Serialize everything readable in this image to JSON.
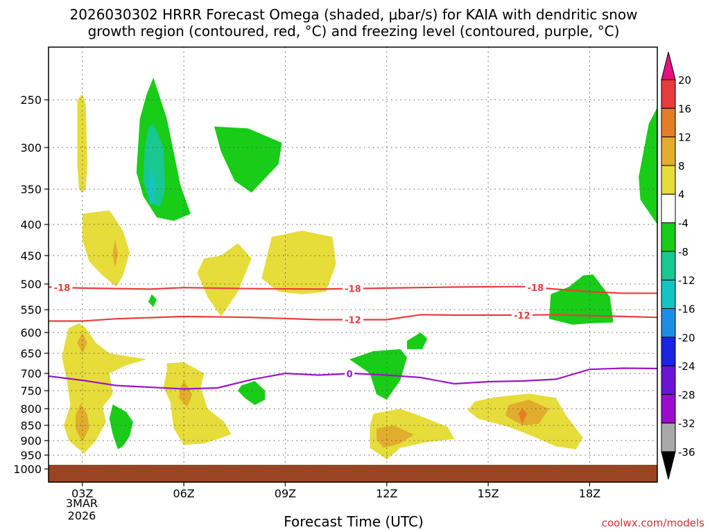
{
  "chart_data": {
    "type": "heatmap",
    "title_line1": "2026030302 HRRR Forecast Omega (shaded, μbar/s) for KAIA with dendritic snow",
    "title_line2": "growth region (contoured, red, °C) and freezing level (contoured, purple, °C)",
    "xlabel": "Forecast Time (UTC)",
    "credit": "coolwx.com/models",
    "x_ticks": [
      "03Z",
      "06Z",
      "09Z",
      "12Z",
      "15Z",
      "18Z"
    ],
    "x_tick_hours": [
      3,
      6,
      9,
      12,
      15,
      18
    ],
    "x_date_line1": "3MAR",
    "x_date_line2": "2026",
    "xlim_hours": [
      2,
      20
    ],
    "y_ticks": [
      250,
      300,
      350,
      400,
      450,
      500,
      550,
      600,
      650,
      700,
      750,
      800,
      850,
      900,
      950,
      1000
    ],
    "ylim_pressure": [
      1000,
      200
    ],
    "grid": true,
    "colorbar": {
      "levels": [
        -36,
        -32,
        -28,
        -24,
        -20,
        -16,
        -12,
        -8,
        -4,
        4,
        8,
        12,
        16,
        20
      ],
      "colors": [
        "#000000",
        "#a9a9a9",
        "#9b0bce",
        "#6a14d6",
        "#1a23e0",
        "#1d8ee8",
        "#14c4c4",
        "#18c890",
        "#18cc18",
        "#ffffff",
        "#e6dc3a",
        "#e2ac2c",
        "#e47e24",
        "#e63c3c",
        "#e4127e"
      ]
    },
    "ground_color": "#994422",
    "contours": [
      {
        "label": "-18",
        "color": "#e83c3c",
        "points": [
          [
            2,
            506
          ],
          [
            3,
            508
          ],
          [
            5,
            510
          ],
          [
            6,
            507
          ],
          [
            8,
            509
          ],
          [
            10,
            510
          ],
          [
            12,
            508
          ],
          [
            14,
            506
          ],
          [
            16,
            505
          ],
          [
            17,
            510
          ],
          [
            18,
            515
          ],
          [
            19,
            518
          ],
          [
            20,
            518
          ]
        ],
        "label_hours": [
          2.4,
          11.0,
          16.4
        ]
      },
      {
        "label": "-12",
        "color": "#e83c3c",
        "points": [
          [
            2,
            575
          ],
          [
            3,
            575
          ],
          [
            4,
            570
          ],
          [
            6,
            565
          ],
          [
            8,
            567
          ],
          [
            10,
            572
          ],
          [
            12,
            572
          ],
          [
            13,
            561
          ],
          [
            14,
            562
          ],
          [
            16,
            562
          ],
          [
            17,
            561
          ],
          [
            18,
            563
          ],
          [
            20,
            567
          ]
        ],
        "label_hours": [
          11.0,
          16.0
        ]
      },
      {
        "label": "0",
        "color": "#9a16c6",
        "points": [
          [
            2,
            708
          ],
          [
            3,
            720
          ],
          [
            4,
            735
          ],
          [
            6,
            745
          ],
          [
            7,
            742
          ],
          [
            8,
            718
          ],
          [
            9,
            700
          ],
          [
            10,
            705
          ],
          [
            11,
            700
          ],
          [
            12,
            705
          ],
          [
            13,
            712
          ],
          [
            14,
            730
          ],
          [
            15,
            724
          ],
          [
            16,
            722
          ],
          [
            17,
            717
          ],
          [
            18,
            690
          ],
          [
            19,
            687
          ],
          [
            20,
            688
          ]
        ],
        "label_hours": [
          10.9
        ]
      }
    ],
    "regions": [
      {
        "value": "4 to 8",
        "color": "#e6dc3a",
        "points": [
          [
            3,
            245
          ],
          [
            3.1,
            255
          ],
          [
            3.15,
            320
          ],
          [
            3.1,
            350
          ],
          [
            3.0,
            355
          ],
          [
            2.9,
            350
          ],
          [
            2.85,
            320
          ],
          [
            2.85,
            250
          ]
        ]
      },
      {
        "value": "4 to 8",
        "color": "#e6dc3a",
        "points": [
          [
            3,
            385
          ],
          [
            3.8,
            380
          ],
          [
            4.2,
            410
          ],
          [
            4.4,
            445
          ],
          [
            4.2,
            485
          ],
          [
            4.0,
            505
          ],
          [
            3.6,
            485
          ],
          [
            3.2,
            460
          ],
          [
            3.0,
            425
          ]
        ]
      },
      {
        "value": "8 to 12",
        "color": "#e2ac2c",
        "points": [
          [
            3.97,
            425
          ],
          [
            4.05,
            447
          ],
          [
            3.97,
            470
          ],
          [
            3.89,
            447
          ]
        ]
      },
      {
        "value": "-8 to -4",
        "color": "#18cc18",
        "points": [
          [
            5.1,
            230
          ],
          [
            5.5,
            270
          ],
          [
            5.9,
            345
          ],
          [
            6.2,
            385
          ],
          [
            5.7,
            395
          ],
          [
            5.2,
            390
          ],
          [
            4.8,
            360
          ],
          [
            4.6,
            330
          ],
          [
            4.7,
            270
          ],
          [
            4.9,
            245
          ]
        ]
      },
      {
        "value": "-12 to -8",
        "color": "#18c890",
        "points": [
          [
            5.1,
            275
          ],
          [
            5.4,
            300
          ],
          [
            5.45,
            350
          ],
          [
            5.3,
            375
          ],
          [
            5.0,
            370
          ],
          [
            4.8,
            340
          ],
          [
            4.85,
            300
          ],
          [
            4.95,
            280
          ]
        ]
      },
      {
        "value": "-16 to -12",
        "color": "#14c4c4",
        "points": [
          [
            5.05,
            325
          ],
          [
            5.15,
            345
          ],
          [
            5.1,
            370
          ],
          [
            5.0,
            372
          ],
          [
            4.95,
            350
          ],
          [
            4.98,
            330
          ]
        ]
      },
      {
        "value": "-8 to -4",
        "color": "#18cc18",
        "points": [
          [
            5.05,
            520
          ],
          [
            5.2,
            530
          ],
          [
            5.1,
            545
          ],
          [
            4.95,
            535
          ]
        ]
      },
      {
        "value": "-8 to -4",
        "color": "#18cc18",
        "points": [
          [
            6.9,
            278
          ],
          [
            7.9,
            280
          ],
          [
            8.9,
            295
          ],
          [
            8.8,
            320
          ],
          [
            8.0,
            355
          ],
          [
            7.5,
            340
          ],
          [
            7.1,
            305
          ]
        ]
      },
      {
        "value": "4 to 8",
        "color": "#e6dc3a",
        "points": [
          [
            7.1,
            450
          ],
          [
            7.6,
            430
          ],
          [
            8.0,
            455
          ],
          [
            7.6,
            515
          ],
          [
            7.1,
            565
          ],
          [
            6.7,
            525
          ],
          [
            6.4,
            480
          ],
          [
            6.6,
            455
          ]
        ]
      },
      {
        "value": "4 to 8",
        "color": "#e6dc3a",
        "points": [
          [
            8.6,
            420
          ],
          [
            9.5,
            410
          ],
          [
            10.4,
            420
          ],
          [
            10.5,
            465
          ],
          [
            10.2,
            515
          ],
          [
            9.5,
            520
          ],
          [
            8.8,
            515
          ],
          [
            8.3,
            490
          ]
        ]
      },
      {
        "value": "4 to 8",
        "color": "#e6dc3a",
        "points": [
          [
            2.6,
            590
          ],
          [
            2.9,
            580
          ],
          [
            3.1,
            590
          ],
          [
            3.4,
            625
          ],
          [
            3.8,
            650
          ],
          [
            4.9,
            665
          ],
          [
            4.3,
            680
          ],
          [
            3.8,
            700
          ],
          [
            3.9,
            760
          ],
          [
            3.6,
            795
          ],
          [
            3.7,
            840
          ],
          [
            3.4,
            900
          ],
          [
            3.05,
            945
          ],
          [
            2.6,
            900
          ],
          [
            2.45,
            850
          ],
          [
            2.65,
            790
          ],
          [
            2.55,
            725
          ],
          [
            2.4,
            660
          ],
          [
            2.5,
            620
          ]
        ]
      },
      {
        "value": "8 to 12",
        "color": "#e2ac2c",
        "points": [
          [
            3.0,
            600
          ],
          [
            3.15,
            625
          ],
          [
            3.0,
            650
          ],
          [
            2.85,
            625
          ]
        ]
      },
      {
        "value": "8 to 12",
        "color": "#e2ac2c",
        "points": [
          [
            2.95,
            785
          ],
          [
            3.15,
            820
          ],
          [
            3.2,
            860
          ],
          [
            3.0,
            905
          ],
          [
            2.8,
            860
          ],
          [
            2.8,
            820
          ]
        ]
      },
      {
        "value": "-8 to -4",
        "color": "#18cc18",
        "points": [
          [
            3.9,
            788
          ],
          [
            4.3,
            810
          ],
          [
            4.5,
            840
          ],
          [
            4.4,
            885
          ],
          [
            4.2,
            920
          ],
          [
            4.05,
            930
          ],
          [
            3.9,
            880
          ],
          [
            3.8,
            830
          ]
        ]
      },
      {
        "value": "4 to 8",
        "color": "#e6dc3a",
        "points": [
          [
            5.5,
            675
          ],
          [
            6.0,
            672
          ],
          [
            6.6,
            700
          ],
          [
            6.5,
            740
          ],
          [
            6.7,
            800
          ],
          [
            7.2,
            840
          ],
          [
            7.4,
            880
          ],
          [
            6.6,
            910
          ],
          [
            6.0,
            915
          ],
          [
            5.7,
            860
          ],
          [
            5.6,
            780
          ],
          [
            5.4,
            740
          ],
          [
            5.5,
            695
          ]
        ]
      },
      {
        "value": "8 to 12",
        "color": "#e2ac2c",
        "points": [
          [
            6.0,
            720
          ],
          [
            6.25,
            760
          ],
          [
            6.1,
            795
          ],
          [
            5.85,
            770
          ],
          [
            5.9,
            740
          ]
        ]
      },
      {
        "value": "-8 to -4",
        "color": "#18cc18",
        "points": [
          [
            7.7,
            735
          ],
          [
            8.1,
            722
          ],
          [
            8.4,
            750
          ],
          [
            8.4,
            775
          ],
          [
            8.1,
            790
          ],
          [
            7.8,
            770
          ],
          [
            7.6,
            750
          ]
        ]
      },
      {
        "value": "-8 to -4",
        "color": "#18cc18",
        "points": [
          [
            10.9,
            665
          ],
          [
            11.6,
            645
          ],
          [
            12.4,
            640
          ],
          [
            12.6,
            660
          ],
          [
            12.4,
            720
          ],
          [
            12.0,
            775
          ],
          [
            11.7,
            760
          ],
          [
            11.5,
            700
          ]
        ]
      },
      {
        "value": "-8 to -4",
        "color": "#18cc18",
        "points": [
          [
            12.6,
            620
          ],
          [
            13.0,
            600
          ],
          [
            13.2,
            615
          ],
          [
            13.05,
            640
          ],
          [
            12.6,
            640
          ]
        ]
      },
      {
        "value": "4 to 8",
        "color": "#e6dc3a",
        "points": [
          [
            11.6,
            815
          ],
          [
            12.4,
            800
          ],
          [
            13.2,
            830
          ],
          [
            13.8,
            855
          ],
          [
            14.0,
            895
          ],
          [
            13.2,
            905
          ],
          [
            12.4,
            925
          ],
          [
            12.0,
            965
          ],
          [
            11.5,
            925
          ],
          [
            11.5,
            855
          ]
        ]
      },
      {
        "value": "8 to 12",
        "color": "#e2ac2c",
        "points": [
          [
            11.7,
            860
          ],
          [
            12.2,
            850
          ],
          [
            12.8,
            880
          ],
          [
            12.4,
            910
          ],
          [
            11.9,
            925
          ],
          [
            11.7,
            895
          ]
        ]
      },
      {
        "value": "4 to 8",
        "color": "#e6dc3a",
        "points": [
          [
            14.6,
            780
          ],
          [
            15.2,
            768
          ],
          [
            16.2,
            758
          ],
          [
            17.0,
            770
          ],
          [
            17.3,
            820
          ],
          [
            17.8,
            890
          ],
          [
            17.6,
            930
          ],
          [
            17.0,
            920
          ],
          [
            16.3,
            885
          ],
          [
            15.6,
            855
          ],
          [
            14.7,
            830
          ],
          [
            14.4,
            805
          ]
        ]
      },
      {
        "value": "8 to 12",
        "color": "#e2ac2c",
        "points": [
          [
            15.6,
            790
          ],
          [
            16.2,
            775
          ],
          [
            16.8,
            800
          ],
          [
            16.5,
            845
          ],
          [
            16.0,
            850
          ],
          [
            15.5,
            820
          ]
        ]
      },
      {
        "value": "12 to 16",
        "color": "#e47e24",
        "points": [
          [
            16.0,
            800
          ],
          [
            16.15,
            815
          ],
          [
            16.0,
            845
          ],
          [
            15.9,
            815
          ]
        ]
      },
      {
        "value": "-8 to -4",
        "color": "#18cc18",
        "points": [
          [
            17.4,
            505
          ],
          [
            17.8,
            485
          ],
          [
            18.1,
            483
          ],
          [
            18.6,
            525
          ],
          [
            18.7,
            578
          ],
          [
            18.0,
            580
          ],
          [
            17.5,
            583
          ],
          [
            16.8,
            570
          ],
          [
            16.85,
            520
          ]
        ]
      },
      {
        "value": "-8 to -4",
        "color": "#18cc18",
        "points": [
          [
            20.0,
            258
          ],
          [
            19.75,
            275
          ],
          [
            19.45,
            335
          ],
          [
            19.5,
            365
          ],
          [
            20.0,
            400
          ]
        ]
      }
    ]
  }
}
